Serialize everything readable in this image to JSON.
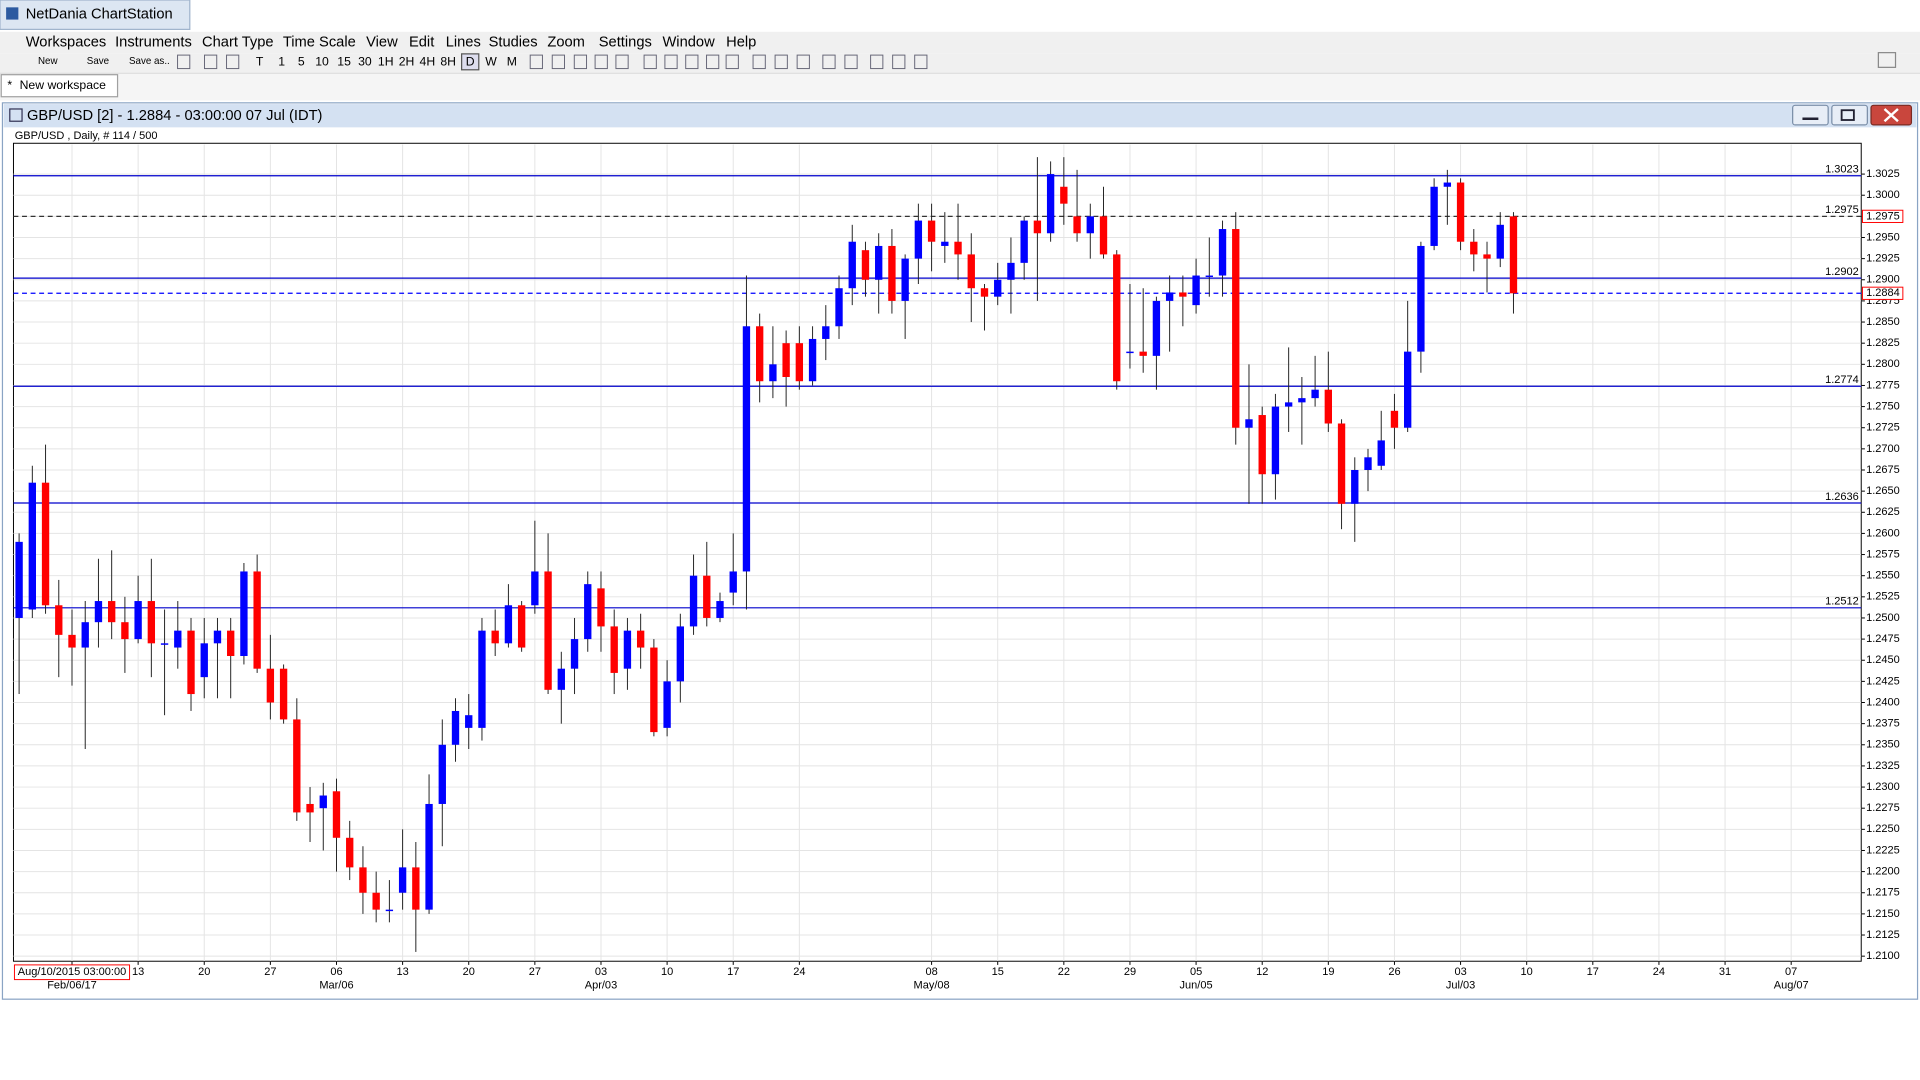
{
  "app": {
    "title": "NetDania ChartStation",
    "menu": [
      "Workspaces",
      "Instruments",
      "Chart Type",
      "Time Scale",
      "View",
      "Edit",
      "Lines",
      "Studies",
      "Zoom",
      "Settings",
      "Window",
      "Help"
    ],
    "file_buttons": [
      "New",
      "Save",
      "Save as.."
    ],
    "timeframes": [
      "T",
      "1",
      "5",
      "10",
      "15",
      "30",
      "1H",
      "2H",
      "4H",
      "8H",
      "D",
      "W",
      "M"
    ],
    "tab": "New workspace"
  },
  "window_title": "GBP/USD [2] - 1.2884 - 03:00:00  07 Jul (IDT)",
  "chart_data": {
    "type": "candlestick",
    "title": "GBP/USD , Daily, # 114 / 500",
    "cursor_label": "Aug/10/2015 03:00:00",
    "categories": [
      null,
      null,
      null,
      null,
      null,
      null,
      null,
      null,
      null,
      "13",
      null,
      null,
      null,
      null,
      "20",
      null,
      null,
      null,
      null,
      "27",
      null,
      null,
      null,
      null,
      "06",
      null,
      null,
      null,
      null,
      "13",
      null,
      null,
      null,
      null,
      "20",
      null,
      null,
      null,
      null,
      "27",
      null,
      null,
      null,
      null,
      "03",
      null,
      null,
      null,
      null,
      "10",
      null,
      null,
      null,
      null,
      "17",
      null,
      null,
      null,
      null,
      "24",
      null,
      null,
      null,
      null,
      null,
      null,
      null,
      null,
      null,
      "08",
      null,
      null,
      null,
      null,
      "15",
      null,
      null,
      null,
      null,
      "22",
      null,
      null,
      null,
      null,
      "29",
      null,
      null,
      null,
      null,
      "05",
      null,
      null,
      null,
      null,
      "12",
      null,
      null,
      null,
      null,
      "19",
      null,
      null,
      null,
      null,
      "26",
      null,
      null,
      null,
      null,
      "03",
      null,
      null,
      null,
      null,
      "10",
      null,
      null,
      null,
      null,
      "17",
      null,
      null,
      null,
      null,
      "24",
      null,
      null,
      null,
      null,
      "31",
      null,
      null,
      null,
      null,
      "07"
    ],
    "sublabels": [
      null,
      null,
      null,
      null,
      "Feb/06/17",
      null,
      null,
      null,
      null,
      null,
      null,
      null,
      null,
      null,
      null,
      null,
      null,
      null,
      null,
      null,
      null,
      null,
      null,
      null,
      "Mar/06",
      null,
      null,
      null,
      null,
      null,
      null,
      null,
      null,
      null,
      null,
      null,
      null,
      null,
      null,
      null,
      null,
      null,
      null,
      null,
      "Apr/03",
      null,
      null,
      null,
      null,
      null,
      null,
      null,
      null,
      null,
      null,
      null,
      null,
      null,
      null,
      null,
      null,
      null,
      null,
      null,
      null,
      null,
      null,
      null,
      null,
      "May/08",
      null,
      null,
      null,
      null,
      null,
      null,
      null,
      null,
      null,
      null,
      null,
      null,
      null,
      null,
      null,
      null,
      null,
      null,
      null,
      "Jun/05",
      null,
      null,
      null,
      null,
      null,
      null,
      null,
      null,
      null,
      null,
      null,
      null,
      null,
      null,
      null,
      null,
      null,
      null,
      null,
      "Jul/03",
      null,
      null,
      null,
      null,
      null,
      null,
      null,
      null,
      null,
      null,
      null,
      null,
      null,
      null,
      null,
      null,
      null,
      null,
      null,
      null,
      null,
      null,
      null,
      null,
      "Aug/07"
    ],
    "open": [
      1.25,
      1.251,
      1.266,
      1.2515,
      1.248,
      1.2465,
      1.2495,
      1.252,
      1.2495,
      1.2475,
      1.252,
      1.247,
      1.2465,
      1.2485,
      1.243,
      1.247,
      1.2485,
      1.2455,
      1.2555,
      1.244,
      1.244,
      1.238,
      1.228,
      1.2275,
      1.2295,
      1.224,
      1.2205,
      1.2175,
      1.2155,
      1.2175,
      1.2205,
      1.2155,
      1.228,
      1.235,
      1.237,
      1.237,
      1.2485,
      1.247,
      1.2515,
      1.2515,
      1.2555,
      1.2415,
      1.244,
      1.2475,
      1.2535,
      1.249,
      1.244,
      1.2485,
      1.2465,
      1.237,
      1.2425,
      1.249,
      1.255,
      1.25,
      1.253,
      1.2555,
      1.2845,
      1.278,
      1.2825,
      1.2825,
      1.278,
      1.283,
      1.2845,
      1.289,
      1.2935,
      1.29,
      1.294,
      1.2875,
      1.2925,
      1.297,
      1.294,
      1.2945,
      1.293,
      1.289,
      1.288,
      1.29,
      1.292,
      1.297,
      1.2955,
      1.301,
      1.2975,
      1.2955,
      1.2975,
      1.293,
      1.2815,
      1.2815,
      1.281,
      1.2875,
      1.2885,
      1.287,
      1.2905,
      1.2905,
      1.296,
      1.2725,
      1.274,
      1.267,
      1.275,
      1.2755,
      1.276,
      1.277,
      1.273,
      1.2635,
      1.2675,
      1.268,
      1.2745,
      1.2725,
      1.2815,
      1.294,
      1.301,
      1.3015,
      1.2945,
      1.293,
      1.2925,
      1.2975,
      null,
      null,
      null,
      null,
      null,
      null,
      null,
      null,
      null,
      null,
      null,
      null,
      null,
      null,
      null,
      null,
      null,
      null,
      null,
      null,
      null
    ],
    "high": [
      1.26,
      1.268,
      1.2705,
      1.2545,
      1.251,
      1.252,
      1.257,
      1.258,
      1.2525,
      1.255,
      1.257,
      1.251,
      1.252,
      1.25,
      1.25,
      1.25,
      1.25,
      1.2565,
      1.2575,
      1.248,
      1.2445,
      1.2405,
      1.23,
      1.2305,
      1.231,
      1.226,
      1.223,
      1.22,
      1.219,
      1.225,
      1.2235,
      1.2315,
      1.238,
      1.2405,
      1.241,
      1.25,
      1.251,
      1.254,
      1.252,
      1.2615,
      1.26,
      1.246,
      1.25,
      1.2555,
      1.2555,
      1.251,
      1.25,
      1.2505,
      1.2475,
      1.245,
      1.2505,
      1.2575,
      1.259,
      1.253,
      1.26,
      1.2905,
      1.286,
      1.2845,
      1.284,
      1.2845,
      1.2845,
      1.287,
      1.2905,
      1.2965,
      1.2945,
      1.2955,
      1.296,
      1.293,
      1.299,
      1.299,
      1.298,
      1.299,
      1.2955,
      1.2895,
      1.292,
      1.295,
      1.2975,
      1.3045,
      1.304,
      1.3045,
      1.303,
      1.299,
      1.301,
      1.2935,
      1.2895,
      1.289,
      1.288,
      1.2905,
      1.2905,
      1.2925,
      1.295,
      1.297,
      1.298,
      1.28,
      1.275,
      1.2765,
      1.282,
      1.2785,
      1.281,
      1.2815,
      1.2735,
      1.269,
      1.27,
      1.2745,
      1.2765,
      1.2875,
      1.2945,
      1.302,
      1.303,
      1.302,
      1.296,
      1.2945,
      1.298,
      1.298,
      null,
      null,
      null,
      null,
      null,
      null,
      null,
      null,
      null,
      null,
      null,
      null,
      null,
      null,
      null,
      null,
      null,
      null,
      null,
      null,
      null
    ],
    "low": [
      1.241,
      1.25,
      1.2505,
      1.243,
      1.242,
      1.2345,
      1.2465,
      1.2475,
      1.2435,
      1.247,
      1.243,
      1.2385,
      1.244,
      1.239,
      1.2405,
      1.2405,
      1.2405,
      1.2445,
      1.2435,
      1.238,
      1.2375,
      1.226,
      1.2235,
      1.2225,
      1.22,
      1.219,
      1.215,
      1.214,
      1.214,
      1.2155,
      1.2105,
      1.215,
      1.223,
      1.233,
      1.2345,
      1.2355,
      1.2455,
      1.2465,
      1.246,
      1.2505,
      1.241,
      1.2375,
      1.241,
      1.246,
      1.246,
      1.241,
      1.2415,
      1.244,
      1.236,
      1.236,
      1.24,
      1.248,
      1.249,
      1.2495,
      1.2515,
      1.251,
      1.2755,
      1.276,
      1.275,
      1.277,
      1.2775,
      1.2805,
      1.283,
      1.287,
      1.288,
      1.286,
      1.286,
      1.283,
      1.2895,
      1.291,
      1.292,
      1.29,
      1.285,
      1.284,
      1.287,
      1.286,
      1.29,
      1.2875,
      1.2945,
      1.2965,
      1.2945,
      1.2925,
      1.2925,
      1.277,
      1.2795,
      1.279,
      1.277,
      1.2815,
      1.2845,
      1.286,
      1.288,
      1.288,
      1.2705,
      1.2635,
      1.2635,
      1.264,
      1.272,
      1.2705,
      1.275,
      1.272,
      1.2605,
      1.259,
      1.265,
      1.2675,
      1.27,
      1.272,
      1.279,
      1.2935,
      1.2965,
      1.2935,
      1.291,
      1.2885,
      1.2915,
      1.286,
      null,
      null,
      null,
      null,
      null,
      null,
      null,
      null,
      null,
      null,
      null,
      null,
      null,
      null,
      null,
      null,
      null,
      null,
      null,
      null,
      null
    ],
    "close": [
      1.259,
      1.266,
      1.2515,
      1.248,
      1.2465,
      1.2495,
      1.252,
      1.2495,
      1.2475,
      1.252,
      1.247,
      1.247,
      1.2485,
      1.241,
      1.247,
      1.2485,
      1.2455,
      1.2555,
      1.244,
      1.24,
      1.238,
      1.227,
      1.227,
      1.229,
      1.224,
      1.2205,
      1.2175,
      1.2155,
      1.2155,
      1.2205,
      1.2155,
      1.228,
      1.235,
      1.239,
      1.2385,
      1.2485,
      1.247,
      1.2515,
      1.2465,
      1.2555,
      1.2415,
      1.244,
      1.2475,
      1.254,
      1.249,
      1.2435,
      1.2485,
      1.2465,
      1.2365,
      1.2425,
      1.249,
      1.255,
      1.25,
      1.252,
      1.2555,
      1.2845,
      1.278,
      1.28,
      1.2785,
      1.278,
      1.283,
      1.2845,
      1.289,
      1.2945,
      1.29,
      1.294,
      1.2875,
      1.2925,
      1.297,
      1.2945,
      1.2945,
      1.293,
      1.289,
      1.288,
      1.29,
      1.292,
      1.297,
      1.2955,
      1.3025,
      1.299,
      1.2955,
      1.2975,
      1.293,
      1.278,
      1.2815,
      1.281,
      1.2875,
      1.2885,
      1.288,
      1.2905,
      1.2905,
      1.296,
      1.2725,
      1.2735,
      1.267,
      1.275,
      1.2755,
      1.276,
      1.277,
      1.273,
      1.2635,
      1.2675,
      1.269,
      1.271,
      1.2725,
      1.2815,
      1.294,
      1.301,
      1.3015,
      1.2945,
      1.293,
      1.2925,
      1.2965,
      1.2884,
      null,
      null,
      null,
      null,
      null,
      null,
      null,
      null,
      null,
      null,
      null,
      null,
      null,
      null,
      null,
      null,
      null,
      null,
      null,
      null,
      null
    ],
    "up_color": "#0000ff",
    "down_color": "#ff0000",
    "ylim": [
      1.2094,
      1.306
    ],
    "yticks": [
      {
        "value": 1.21,
        "label": "1.2100"
      },
      1.2125,
      {
        "value": 1.215,
        "label": "1.2150"
      },
      1.2175,
      {
        "value": 1.22,
        "label": "1.2200"
      },
      1.2225,
      {
        "value": 1.225,
        "label": "1.2250"
      },
      1.2275,
      {
        "value": 1.23,
        "label": "1.2300"
      },
      1.2325,
      {
        "value": 1.235,
        "label": "1.2350"
      },
      1.2375,
      {
        "value": 1.24,
        "label": "1.2400"
      },
      1.2425,
      {
        "value": 1.245,
        "label": "1.2450"
      },
      1.2475,
      {
        "value": 1.25,
        "label": "1.2500"
      },
      1.2525,
      {
        "value": 1.255,
        "label": "1.2550"
      },
      1.2575,
      {
        "value": 1.26,
        "label": "1.2600"
      },
      1.2625,
      {
        "value": 1.265,
        "label": "1.2650"
      },
      1.2675,
      {
        "value": 1.27,
        "label": "1.2700"
      },
      1.2725,
      {
        "value": 1.275,
        "label": "1.2750"
      },
      1.2775,
      {
        "value": 1.28,
        "label": "1.2800"
      },
      1.2825,
      {
        "value": 1.285,
        "label": "1.2850"
      },
      1.2875,
      {
        "value": 1.29,
        "label": "1.2900"
      },
      1.2925,
      {
        "value": 1.295,
        "label": "1.2950"
      },
      1.2975,
      {
        "value": 1.3,
        "label": "1.3000"
      },
      1.3025
    ],
    "grid": true,
    "hlines": [
      {
        "value": 1.3023,
        "color": "#0000cc",
        "dashed": false
      },
      {
        "value": 1.2975,
        "color": "#333333",
        "dashed": true
      },
      {
        "value": 1.2902,
        "color": "#0000cc",
        "dashed": false
      },
      {
        "value": 1.2774,
        "color": "#0000cc",
        "dashed": false
      },
      {
        "value": 1.2636,
        "color": "#0000cc",
        "dashed": false
      },
      {
        "value": 1.2512,
        "color": "#0000cc",
        "dashed": false
      }
    ],
    "price_line": {
      "value": 1.2884,
      "color": "#0000ff",
      "dashed": true
    },
    "price_markers": [
      {
        "value": 1.2975,
        "color": "#ff0000"
      },
      {
        "value": 1.2884,
        "color": "#ff0000"
      }
    ]
  }
}
